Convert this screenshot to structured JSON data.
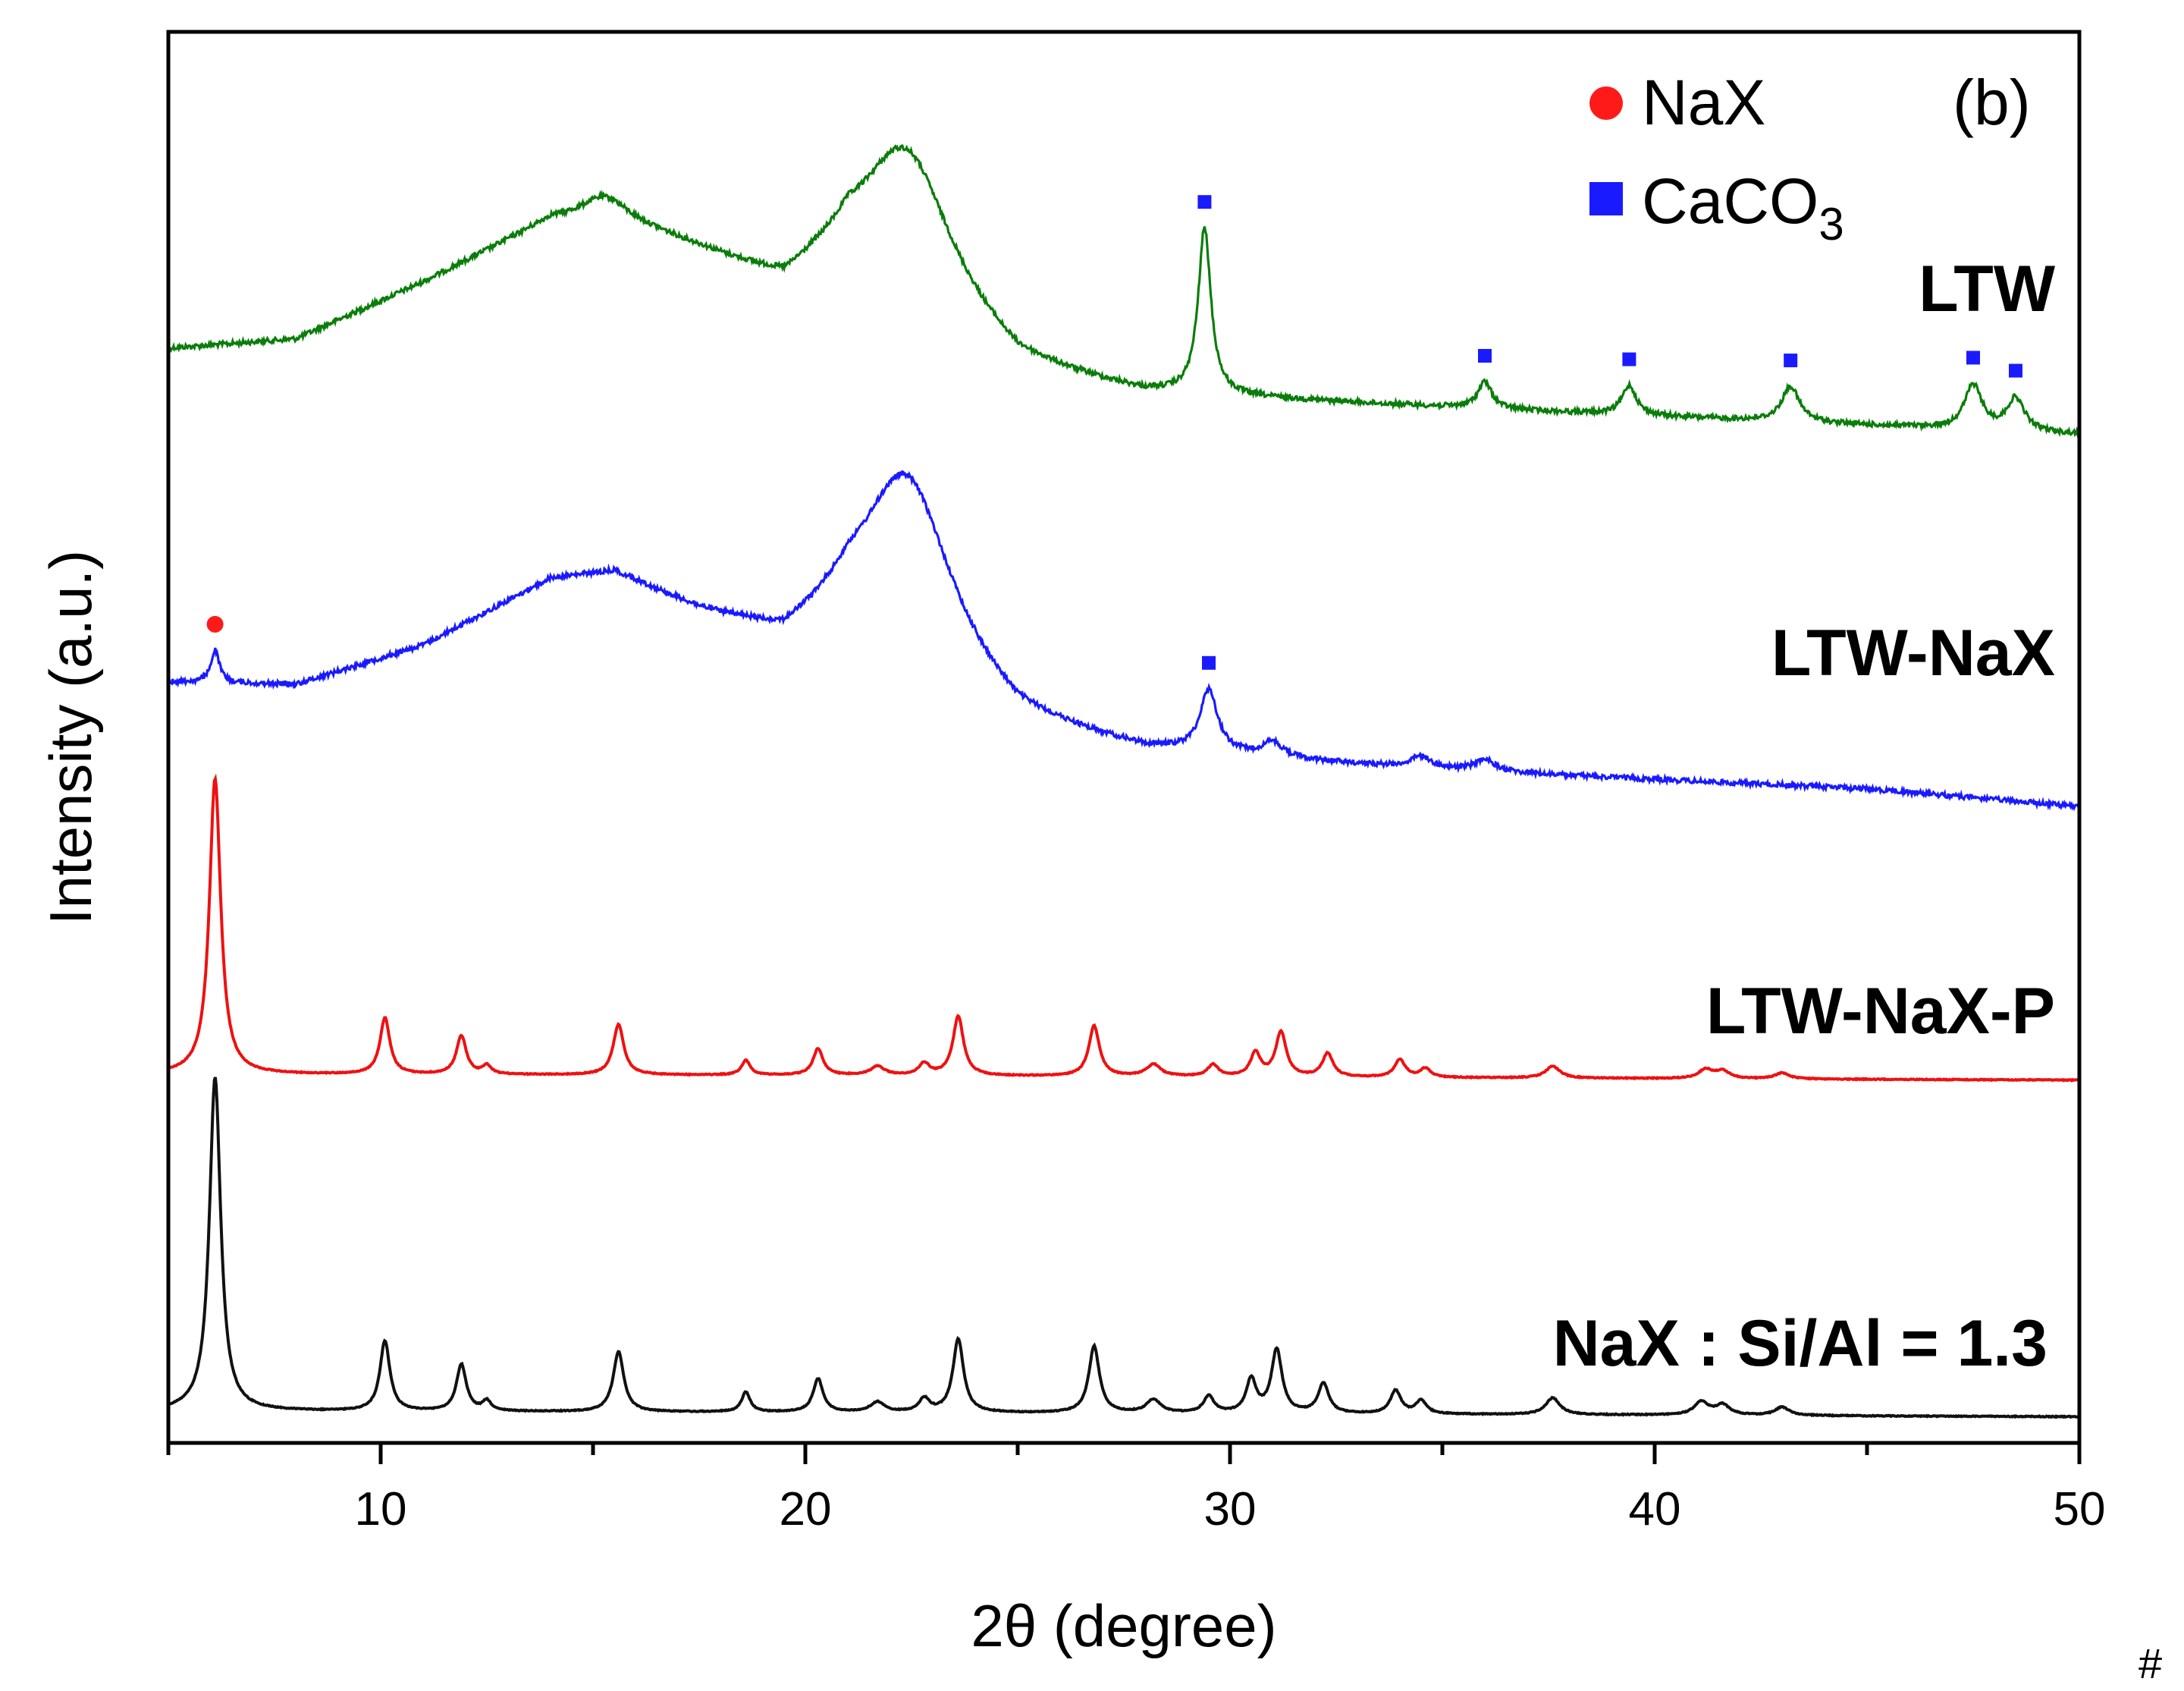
{
  "chart_data": {
    "type": "line",
    "panel_label": "(b)",
    "corner_mark": "#",
    "xlabel": "2θ (degree)",
    "ylabel": "Intensity (a.u.)",
    "xlim": [
      5,
      50
    ],
    "x_ticks": [
      10,
      20,
      30,
      40,
      50
    ],
    "x_ticklabels": [
      "10",
      "20",
      "30",
      "40",
      "50"
    ],
    "x_minor_ticks": [
      5,
      15,
      25,
      35,
      45
    ],
    "y_ticks": "none",
    "grid": false,
    "legend": {
      "placement": "top-right",
      "entries": [
        {
          "label": "NaX",
          "marker": "circle",
          "color": "#ff1a1a"
        },
        {
          "label_main": "CaCO",
          "label_sub": "3",
          "marker": "square",
          "color": "#1a1aff"
        }
      ]
    },
    "series": [
      {
        "name": "LTW",
        "color": "#0a7d0a",
        "baseline": 25,
        "background": [
          [
            5,
            25
          ],
          [
            8,
            26.5
          ],
          [
            11,
            36
          ],
          [
            14,
            46.5
          ],
          [
            15.5,
            47
          ],
          [
            17.5,
            41
          ],
          [
            19.5,
            34.5
          ],
          [
            21,
            39
          ],
          [
            25,
            21
          ],
          [
            28,
            17
          ],
          [
            35,
            15
          ],
          [
            45,
            12
          ],
          [
            50,
            10.5
          ]
        ],
        "peaks": [
          [
            15.2,
            3,
            0.6
          ],
          [
            22.4,
            26,
            1.3
          ],
          [
            29.4,
            28,
            0.18
          ],
          [
            36,
            4.5,
            0.2
          ],
          [
            39.4,
            5,
            0.2
          ],
          [
            43.2,
            6,
            0.25
          ],
          [
            47.5,
            7.5,
            0.25
          ],
          [
            48.5,
            5.5,
            0.25
          ]
        ],
        "markers": [
          {
            "x": 29.4,
            "type": "square"
          },
          {
            "x": 36.0,
            "type": "square"
          },
          {
            "x": 39.4,
            "type": "square"
          },
          {
            "x": 43.2,
            "type": "square"
          },
          {
            "x": 47.5,
            "type": "square"
          },
          {
            "x": 48.5,
            "type": "square"
          }
        ]
      },
      {
        "name": "LTW-NaX",
        "color": "#1a1aff",
        "baseline": 25,
        "background": [
          [
            5,
            25
          ],
          [
            8,
            24.5
          ],
          [
            11,
            31
          ],
          [
            14,
            42
          ],
          [
            15.5,
            43
          ],
          [
            17.5,
            36
          ],
          [
            19.5,
            30.5
          ],
          [
            21,
            34
          ],
          [
            25,
            17
          ],
          [
            28,
            13
          ],
          [
            35,
            10
          ],
          [
            45,
            7
          ],
          [
            50,
            4
          ]
        ],
        "peaks": [
          [
            6.1,
            5.5,
            0.12
          ],
          [
            22.4,
            32,
            1.3
          ],
          [
            29.5,
            10.5,
            0.25
          ],
          [
            31,
            2.5,
            0.3
          ],
          [
            34.5,
            2,
            0.3
          ],
          [
            36,
            2,
            0.3
          ]
        ],
        "markers": [
          {
            "x": 6.1,
            "type": "circle"
          },
          {
            "x": 29.5,
            "type": "square"
          }
        ]
      },
      {
        "name": "LTW-NaX-P",
        "color": "#ee1111",
        "baseline": 25,
        "background": [
          [
            5,
            25
          ],
          [
            20,
            24.6
          ],
          [
            35,
            23.8
          ],
          [
            50,
            23
          ]
        ],
        "peaks": [
          [
            6.1,
            100,
            0.16
          ],
          [
            10.1,
            19,
            0.14
          ],
          [
            11.9,
            13,
            0.14
          ],
          [
            12.5,
            3,
            0.12
          ],
          [
            15.6,
            17,
            0.15
          ],
          [
            18.6,
            5,
            0.12
          ],
          [
            20.3,
            9,
            0.14
          ],
          [
            21.7,
            3,
            0.2
          ],
          [
            22.8,
            4,
            0.15
          ],
          [
            23.6,
            20,
            0.15
          ],
          [
            26.8,
            17,
            0.15
          ],
          [
            28.2,
            4,
            0.2
          ],
          [
            29.6,
            4,
            0.15
          ],
          [
            30.6,
            8,
            0.14
          ],
          [
            31.2,
            15,
            0.15
          ],
          [
            32.3,
            8,
            0.15
          ],
          [
            34,
            6,
            0.15
          ],
          [
            34.6,
            3,
            0.15
          ],
          [
            37.6,
            4,
            0.2
          ],
          [
            41.2,
            3,
            0.2
          ],
          [
            41.6,
            2.5,
            0.2
          ],
          [
            43,
            2,
            0.2
          ]
        ],
        "markers": []
      },
      {
        "name": "NaX : Si/Al = 1.3",
        "color": "#111111",
        "baseline": 25,
        "background": [
          [
            5,
            25
          ],
          [
            20,
            24.6
          ],
          [
            35,
            24
          ],
          [
            50,
            23.3
          ]
        ],
        "peaks": [
          [
            6.1,
            100,
            0.16
          ],
          [
            10.1,
            21,
            0.14
          ],
          [
            11.9,
            14,
            0.14
          ],
          [
            12.5,
            3,
            0.12
          ],
          [
            15.6,
            18,
            0.15
          ],
          [
            18.6,
            6,
            0.12
          ],
          [
            20.3,
            10,
            0.14
          ],
          [
            21.7,
            3,
            0.2
          ],
          [
            22.8,
            4,
            0.15
          ],
          [
            23.6,
            22,
            0.15
          ],
          [
            26.8,
            20,
            0.15
          ],
          [
            28.2,
            4,
            0.2
          ],
          [
            29.5,
            5,
            0.15
          ],
          [
            30.5,
            10,
            0.14
          ],
          [
            31.1,
            19,
            0.15
          ],
          [
            32.2,
            9,
            0.15
          ],
          [
            33.9,
            7,
            0.15
          ],
          [
            34.5,
            4,
            0.15
          ],
          [
            37.6,
            5,
            0.2
          ],
          [
            41.1,
            4,
            0.2
          ],
          [
            41.6,
            3,
            0.2
          ],
          [
            43,
            2.5,
            0.2
          ]
        ],
        "markers": []
      }
    ]
  }
}
